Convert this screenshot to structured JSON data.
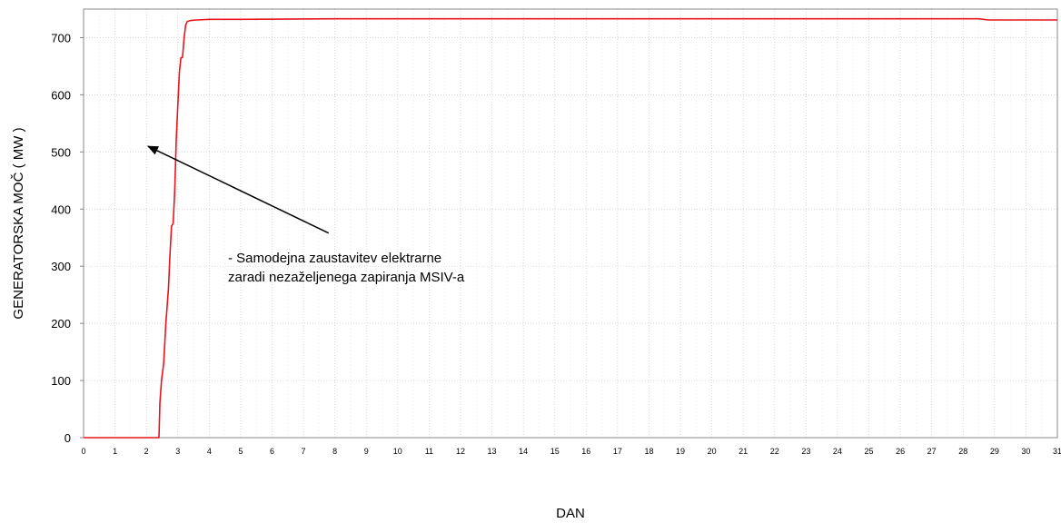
{
  "chart_data": {
    "type": "line",
    "title": "",
    "xlabel": "DAN",
    "ylabel": "GENERATORSKA MOČ  ( MW )",
    "xlim": [
      0,
      31
    ],
    "ylim": [
      0,
      750
    ],
    "x_ticks": [
      "0",
      "1",
      "2",
      "3",
      "4",
      "5",
      "6",
      "7",
      "8",
      "9",
      "10",
      "11",
      "12",
      "13",
      "14",
      "15",
      "16",
      "17",
      "18",
      "19",
      "20",
      "21",
      "22",
      "23",
      "24",
      "25",
      "26",
      "27",
      "28",
      "29",
      "30",
      "31"
    ],
    "y_ticks": [
      "0",
      "100",
      "200",
      "300",
      "400",
      "500",
      "600",
      "700"
    ],
    "grid": true,
    "legend": "none",
    "series": [
      {
        "color": "#e8141e",
        "x": [
          0,
          2.4,
          2.43,
          2.48,
          2.55,
          2.62,
          2.7,
          2.75,
          2.8,
          2.85,
          2.9,
          2.95,
          3.0,
          3.05,
          3.1,
          3.15,
          3.2,
          3.25,
          3.3,
          3.4,
          3.6,
          4.0,
          5.0,
          8.0,
          12.0,
          16.0,
          19.0,
          22.0,
          25.0,
          27.0,
          28.5,
          28.8,
          30.0,
          31.0
        ],
        "y": [
          0,
          0,
          60,
          100,
          130,
          200,
          260,
          320,
          370,
          375,
          430,
          520,
          580,
          640,
          665,
          665,
          700,
          722,
          728,
          730,
          731,
          732,
          732,
          733,
          733,
          733,
          733,
          733,
          733,
          733,
          733,
          731,
          731,
          731
        ]
      }
    ],
    "annotations": [
      {
        "text_lines": [
          "- Samodejna zaustavitev elektrarne",
          "zaradi nezaželjenega zapiranja MSIV-a"
        ],
        "arrow_from": [
          7.8,
          358
        ],
        "arrow_to": [
          2.05,
          510
        ],
        "arrow_color": "#000000"
      }
    ]
  }
}
